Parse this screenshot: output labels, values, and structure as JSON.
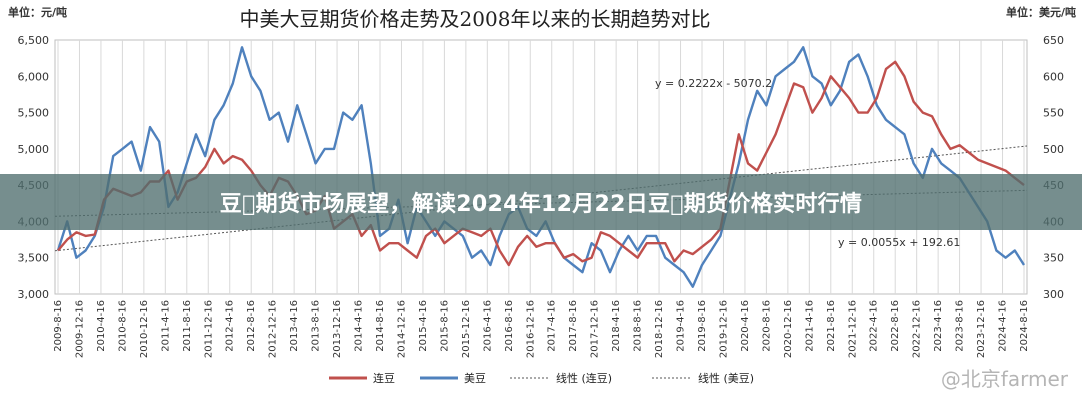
{
  "banner": {
    "headline": "豆\u0000期货市场展望，解读2024年12月22日豆\u0000期货价格实时行情"
  },
  "watermark": {
    "text": "@北京farmer"
  },
  "chart_data": {
    "type": "line",
    "title": "中美大豆期货价格走势及2008年以来的长期趋势对比",
    "left_unit": "单位：元/吨",
    "right_unit": "单位：美元/吨",
    "y_left": {
      "ticks": [
        "6,500",
        "6,000",
        "5,500",
        "5,000",
        "4,500",
        "4,000",
        "3,500",
        "3,000"
      ],
      "range": [
        3000,
        6500
      ]
    },
    "y_right": {
      "ticks": [
        "650",
        "600",
        "550",
        "500",
        "450",
        "400",
        "350",
        "300"
      ],
      "range": [
        300,
        650
      ]
    },
    "x_ticks": [
      "2009-8-16",
      "2009-12-16",
      "2010-4-16",
      "2010-8-16",
      "2010-12-16",
      "2011-4-16",
      "2011-8-16",
      "2011-12-16",
      "2012-4-16",
      "2012-8-16",
      "2012-12-16",
      "2013-4-16",
      "2013-8-16",
      "2013-12-16",
      "2014-4-16",
      "2014-8-16",
      "2014-12-16",
      "2015-4-16",
      "2015-8-16",
      "2015-12-16",
      "2016-4-16",
      "2016-8-16",
      "2016-12-16",
      "2017-4-16",
      "2017-8-16",
      "2017-12-16",
      "2018-4-16",
      "2018-8-16",
      "2018-12-16",
      "2019-4-16",
      "2019-8-16",
      "2019-12-16",
      "2020-4-16",
      "2020-8-16",
      "2020-12-16",
      "2021-4-16",
      "2021-8-16",
      "2021-12-16",
      "2022-4-16",
      "2022-8-16",
      "2022-12-16",
      "2023-4-16",
      "2023-8-16",
      "2023-12-16",
      "2024-4-16",
      "2024-8-16"
    ],
    "series": [
      {
        "name": "连豆",
        "axis": "left",
        "color": "#c0504d",
        "values": [
          3600,
          3750,
          3850,
          3800,
          3820,
          4300,
          4450,
          4400,
          4350,
          4400,
          4550,
          4550,
          4700,
          4300,
          4550,
          4600,
          4750,
          5000,
          4800,
          4900,
          4850,
          4700,
          4500,
          4350,
          4600,
          4550,
          4350,
          4100,
          4150,
          4350,
          3900,
          4000,
          4100,
          3800,
          3950,
          3600,
          3700,
          3700,
          3600,
          3500,
          3800,
          3900,
          3700,
          3800,
          3900,
          3850,
          3800,
          3900,
          3600,
          3400,
          3650,
          3800,
          3650,
          3700,
          3700,
          3500,
          3550,
          3450,
          3500,
          3850,
          3800,
          3700,
          3600,
          3500,
          3700,
          3700,
          3700,
          3450,
          3600,
          3550,
          3650,
          3750,
          3900,
          4550,
          5200,
          4800,
          4700,
          4950,
          5200,
          5550,
          5900,
          5850,
          5500,
          5700,
          6000,
          5850,
          5700,
          5500,
          5500,
          5700,
          6100,
          6200,
          6000,
          5650,
          5500,
          5450,
          5200,
          5000,
          5050,
          4950,
          4850,
          4800,
          4750,
          4700,
          4600,
          4500
        ]
      },
      {
        "name": "美豆",
        "axis": "right",
        "color": "#4f81bd",
        "values": [
          360,
          400,
          350,
          360,
          380,
          420,
          490,
          500,
          510,
          470,
          530,
          510,
          420,
          440,
          480,
          520,
          490,
          540,
          560,
          590,
          640,
          600,
          580,
          540,
          550,
          510,
          560,
          520,
          480,
          500,
          500,
          550,
          540,
          560,
          480,
          380,
          390,
          430,
          370,
          420,
          400,
          380,
          400,
          390,
          380,
          350,
          360,
          340,
          380,
          410,
          420,
          390,
          380,
          400,
          370,
          350,
          340,
          330,
          370,
          360,
          330,
          360,
          380,
          360,
          380,
          380,
          350,
          340,
          330,
          310,
          340,
          360,
          380,
          430,
          480,
          540,
          580,
          560,
          600,
          610,
          620,
          640,
          600,
          590,
          560,
          580,
          620,
          630,
          600,
          560,
          540,
          530,
          520,
          480,
          460,
          500,
          480,
          470,
          460,
          440,
          420,
          400,
          360,
          350,
          360,
          340
        ]
      },
      {
        "name": "线性 (连豆)",
        "axis": "left",
        "style": "dotted",
        "color": "#555555",
        "slope": 0.2222,
        "intercept": -5070.2
      },
      {
        "name": "线性 (美豆)",
        "axis": "right",
        "style": "dotted",
        "color": "#555555",
        "slope": 0.0055,
        "intercept": 192.61
      }
    ],
    "equations": [
      "y = 0.2222x - 5070.2",
      "y = 0.0055x + 192.61"
    ],
    "legend": [
      "连豆",
      "美豆",
      "线性 (连豆)",
      "线性 (美豆)"
    ],
    "legend_position": "bottom",
    "grid": true
  }
}
